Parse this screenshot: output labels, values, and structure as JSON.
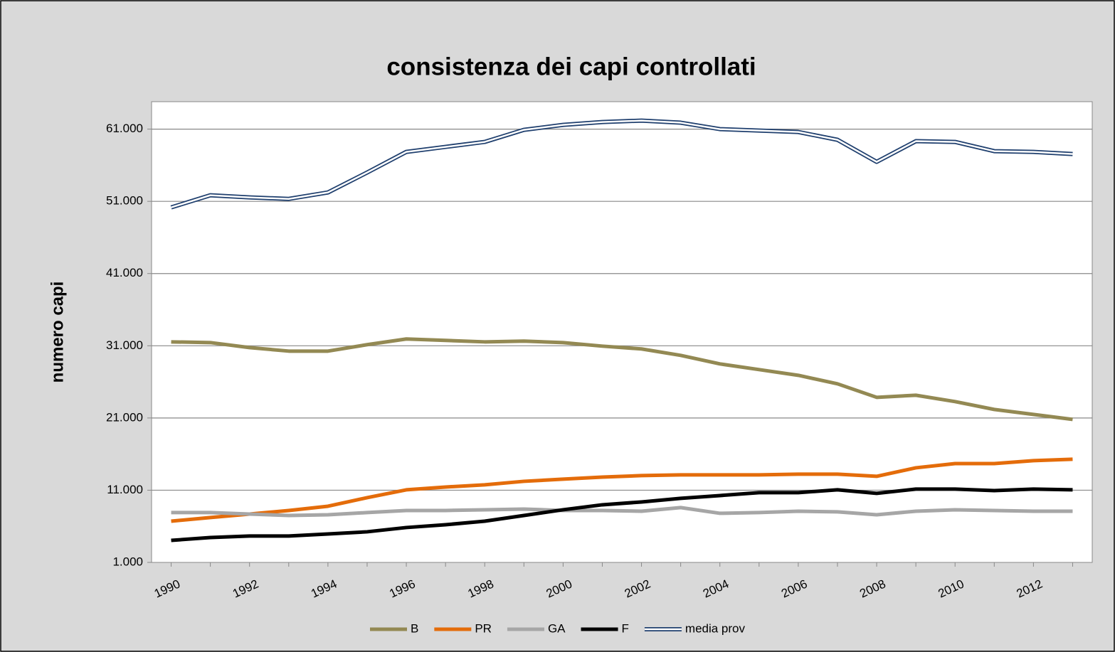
{
  "chart_data": {
    "type": "line",
    "title": "consistenza dei capi controllati",
    "y_label": "numero capi",
    "categories": [
      "1990",
      null,
      "1992",
      null,
      "1994",
      null,
      "1996",
      null,
      "1998",
      null,
      "2000",
      null,
      "2002",
      null,
      "2004",
      null,
      "2006",
      null,
      "2008",
      null,
      "2010",
      null,
      "2012",
      null
    ],
    "series": [
      {
        "name": "B",
        "color": "#938953",
        "values": [
          31540,
          31440,
          30750,
          30260,
          30260,
          31150,
          31940,
          31740,
          31540,
          31640,
          31440,
          30950,
          30560,
          29670,
          28490,
          27700,
          26910,
          25730,
          23860,
          24150,
          23270,
          22180,
          21490,
          20800
        ]
      },
      {
        "name": "PR",
        "color": "#e46c0a",
        "values": [
          6710,
          7210,
          7700,
          8190,
          8780,
          9970,
          11050,
          11440,
          11740,
          12230,
          12530,
          12820,
          13020,
          13120,
          13120,
          13120,
          13220,
          13220,
          12920,
          14100,
          14690,
          14690,
          15090,
          15290
        ]
      },
      {
        "name": "GA",
        "color": "#a6a6a6",
        "values": [
          7900,
          7900,
          7700,
          7500,
          7600,
          7900,
          8190,
          8190,
          8290,
          8390,
          8190,
          8190,
          8090,
          8590,
          7800,
          7900,
          8090,
          8000,
          7600,
          8090,
          8290,
          8190,
          8090,
          8090
        ]
      },
      {
        "name": "F",
        "color": "#000000",
        "values": [
          4050,
          4450,
          4650,
          4650,
          4940,
          5240,
          5830,
          6220,
          6710,
          7500,
          8290,
          8980,
          9370,
          9870,
          10260,
          10660,
          10660,
          11050,
          10560,
          11150,
          11150,
          10950,
          11150,
          11050
        ]
      },
      {
        "name": "media prov",
        "color": "#1f3f6e",
        "style": "double",
        "values": [
          50160,
          51840,
          51540,
          51340,
          52230,
          54990,
          57850,
          58540,
          59230,
          60900,
          61590,
          61980,
          62180,
          61890,
          61000,
          60800,
          60600,
          59520,
          56470,
          59330,
          59230,
          57950,
          57850,
          57550
        ]
      }
    ],
    "ylim": [
      1000,
      64800
    ],
    "yticks": [
      {
        "value": 1000,
        "label": "1.000"
      },
      {
        "value": 11000,
        "label": "11.000"
      },
      {
        "value": 21000,
        "label": "21.000"
      },
      {
        "value": 31000,
        "label": "31.000"
      },
      {
        "value": 41000,
        "label": "41.000"
      },
      {
        "value": 51000,
        "label": "51.000"
      },
      {
        "value": 61000,
        "label": "61.000"
      }
    ],
    "grid": true,
    "legend": "bottom"
  }
}
